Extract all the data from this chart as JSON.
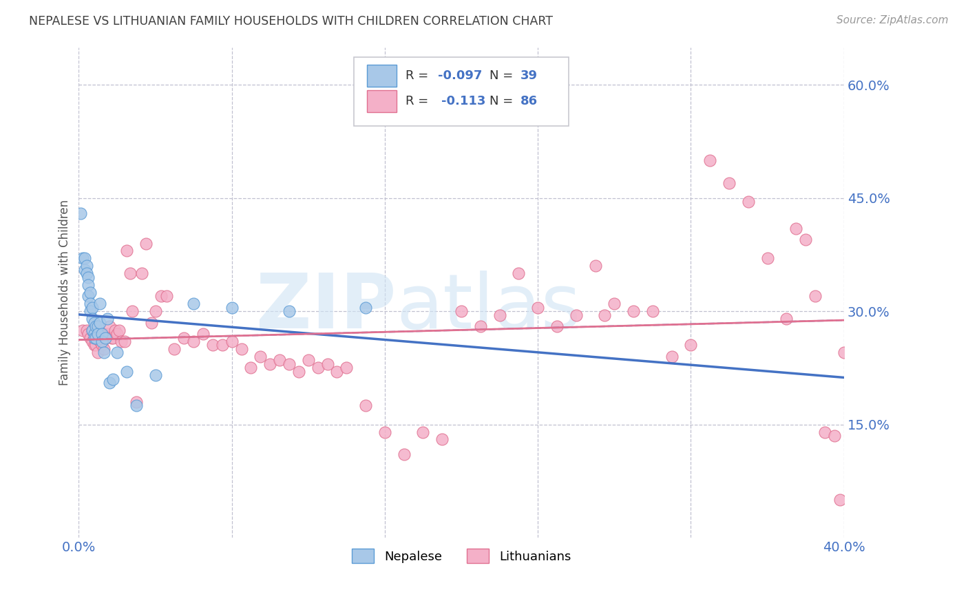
{
  "title": "NEPALESE VS LITHUANIAN FAMILY HOUSEHOLDS WITH CHILDREN CORRELATION CHART",
  "source": "Source: ZipAtlas.com",
  "ylabel": "Family Households with Children",
  "xlim": [
    0.0,
    0.4
  ],
  "ylim": [
    0.0,
    0.65
  ],
  "yticks": [
    0.15,
    0.3,
    0.45,
    0.6
  ],
  "ytick_labels": [
    "15.0%",
    "30.0%",
    "45.0%",
    "60.0%"
  ],
  "xticks_grid": [
    0.0,
    0.08,
    0.16,
    0.24,
    0.32,
    0.4
  ],
  "nepalese_color": "#a8c8e8",
  "nepalese_edge": "#5b9bd5",
  "lithuanian_color": "#f4b0c8",
  "lithuanian_edge": "#e07090",
  "trend_nepalese_color": "#4472c4",
  "trend_lithuanian_color": "#e07090",
  "background_color": "#ffffff",
  "grid_color": "#c0c0d0",
  "axis_label_color": "#4472c4",
  "title_color": "#404040",
  "nepalese_x": [
    0.001,
    0.002,
    0.003,
    0.003,
    0.004,
    0.004,
    0.005,
    0.005,
    0.005,
    0.006,
    0.006,
    0.006,
    0.007,
    0.007,
    0.007,
    0.008,
    0.008,
    0.008,
    0.009,
    0.009,
    0.01,
    0.01,
    0.011,
    0.011,
    0.012,
    0.012,
    0.013,
    0.014,
    0.015,
    0.016,
    0.018,
    0.02,
    0.025,
    0.03,
    0.04,
    0.06,
    0.08,
    0.11,
    0.15
  ],
  "nepalese_y": [
    0.43,
    0.37,
    0.37,
    0.355,
    0.36,
    0.35,
    0.345,
    0.335,
    0.32,
    0.325,
    0.31,
    0.3,
    0.305,
    0.29,
    0.275,
    0.285,
    0.27,
    0.265,
    0.28,
    0.265,
    0.28,
    0.27,
    0.285,
    0.31,
    0.27,
    0.26,
    0.245,
    0.265,
    0.29,
    0.205,
    0.21,
    0.245,
    0.22,
    0.175,
    0.215,
    0.31,
    0.305,
    0.3,
    0.305
  ],
  "lithuanian_x": [
    0.002,
    0.004,
    0.005,
    0.006,
    0.007,
    0.007,
    0.008,
    0.008,
    0.009,
    0.009,
    0.01,
    0.01,
    0.011,
    0.012,
    0.012,
    0.013,
    0.013,
    0.014,
    0.015,
    0.016,
    0.017,
    0.018,
    0.019,
    0.02,
    0.021,
    0.022,
    0.024,
    0.025,
    0.027,
    0.028,
    0.03,
    0.033,
    0.035,
    0.038,
    0.04,
    0.043,
    0.046,
    0.05,
    0.055,
    0.06,
    0.065,
    0.07,
    0.075,
    0.08,
    0.085,
    0.09,
    0.095,
    0.1,
    0.105,
    0.11,
    0.115,
    0.12,
    0.125,
    0.13,
    0.135,
    0.14,
    0.15,
    0.16,
    0.17,
    0.18,
    0.19,
    0.2,
    0.21,
    0.22,
    0.23,
    0.24,
    0.25,
    0.26,
    0.27,
    0.275,
    0.28,
    0.29,
    0.3,
    0.31,
    0.32,
    0.33,
    0.34,
    0.35,
    0.36,
    0.37,
    0.375,
    0.38,
    0.385,
    0.39,
    0.395,
    0.398,
    0.4
  ],
  "lithuanian_y": [
    0.275,
    0.275,
    0.27,
    0.265,
    0.275,
    0.26,
    0.27,
    0.255,
    0.265,
    0.255,
    0.265,
    0.245,
    0.26,
    0.27,
    0.255,
    0.27,
    0.25,
    0.265,
    0.27,
    0.28,
    0.265,
    0.265,
    0.275,
    0.27,
    0.275,
    0.26,
    0.26,
    0.38,
    0.35,
    0.3,
    0.18,
    0.35,
    0.39,
    0.285,
    0.3,
    0.32,
    0.32,
    0.25,
    0.265,
    0.26,
    0.27,
    0.255,
    0.255,
    0.26,
    0.25,
    0.225,
    0.24,
    0.23,
    0.235,
    0.23,
    0.22,
    0.235,
    0.225,
    0.23,
    0.22,
    0.225,
    0.175,
    0.14,
    0.11,
    0.14,
    0.13,
    0.3,
    0.28,
    0.295,
    0.35,
    0.305,
    0.28,
    0.295,
    0.36,
    0.295,
    0.31,
    0.3,
    0.3,
    0.24,
    0.255,
    0.5,
    0.47,
    0.445,
    0.37,
    0.29,
    0.41,
    0.395,
    0.32,
    0.14,
    0.135,
    0.05,
    0.245
  ]
}
